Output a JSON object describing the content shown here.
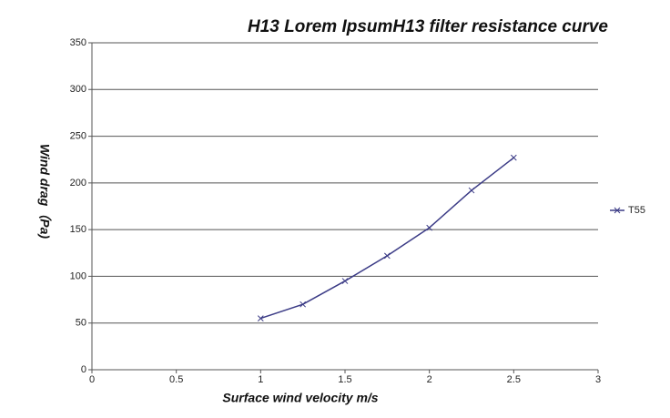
{
  "chart_data": {
    "type": "line",
    "title": "H13 Lorem IpsumH13 filter resistance curve",
    "x_label": "Surface wind velocity m/s",
    "y_label": "Wind drag（Pa)",
    "x": [
      1,
      1.25,
      1.5,
      1.75,
      2,
      2.25,
      2.5
    ],
    "series": [
      {
        "name": "T55",
        "color": "#3b3b86",
        "values": [
          55,
          70,
          95,
          122,
          152,
          192,
          227
        ]
      }
    ],
    "xlim": [
      0,
      3
    ],
    "xticks": [
      0,
      0.5,
      1,
      1.5,
      2,
      2.5,
      3
    ],
    "ylim": [
      0,
      350
    ],
    "yticks": [
      0,
      50,
      100,
      150,
      200,
      250,
      300,
      350
    ],
    "grid": true,
    "legend": "right"
  }
}
